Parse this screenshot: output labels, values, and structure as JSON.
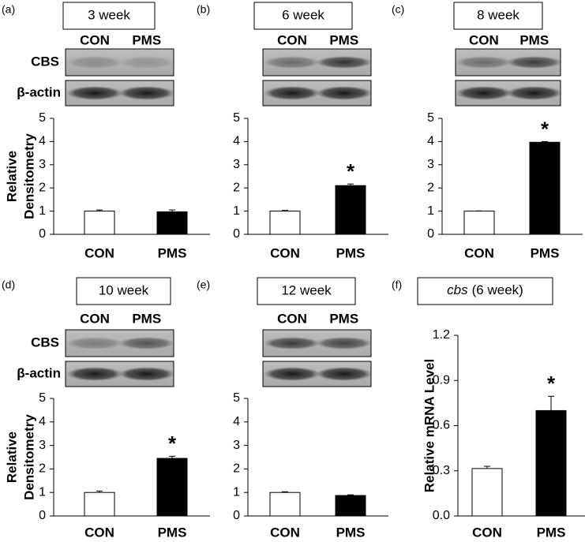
{
  "chart_data": [
    {
      "type": "bar",
      "panel": "(a)",
      "title": "3 week",
      "lane_labels": [
        "CON",
        "PMS"
      ],
      "blot_labels": [
        "CBS",
        "β-actin"
      ],
      "ylabel": [
        "Relative",
        "Densitometry"
      ],
      "categories": [
        "CON",
        "PMS"
      ],
      "values": [
        1.0,
        0.97
      ],
      "errors": [
        0.05,
        0.08
      ],
      "colors": [
        "#ffffff",
        "#000000"
      ],
      "value_annotations": [
        null,
        null
      ],
      "ylim": [
        0,
        5
      ],
      "yticks": [
        0,
        1,
        2,
        3,
        4,
        5
      ]
    },
    {
      "type": "bar",
      "panel": "(b)",
      "title": "6 week",
      "lane_labels": [
        "CON",
        "PMS"
      ],
      "categories": [
        "CON",
        "PMS"
      ],
      "values": [
        1.0,
        2.1
      ],
      "errors": [
        0.03,
        0.07
      ],
      "colors": [
        "#ffffff",
        "#000000"
      ],
      "value_annotations": [
        null,
        "*"
      ],
      "ylim": [
        0,
        5
      ],
      "yticks": [
        0,
        1,
        2,
        3,
        4,
        5
      ]
    },
    {
      "type": "bar",
      "panel": "(c)",
      "title": "8 week",
      "lane_labels": [
        "CON",
        "PMS"
      ],
      "categories": [
        "CON",
        "PMS"
      ],
      "values": [
        1.0,
        3.97
      ],
      "errors": [
        0.01,
        0.03
      ],
      "colors": [
        "#ffffff",
        "#000000"
      ],
      "value_annotations": [
        null,
        "*"
      ],
      "ylim": [
        0,
        5
      ],
      "yticks": [
        0,
        1,
        2,
        3,
        4,
        5
      ]
    },
    {
      "type": "bar",
      "panel": "(d)",
      "title": "10 week",
      "lane_labels": [
        "CON",
        "PMS"
      ],
      "blot_labels": [
        "CBS",
        "β-actin"
      ],
      "ylabel": [
        "Relative",
        "Densitometry"
      ],
      "categories": [
        "CON",
        "PMS"
      ],
      "values": [
        1.0,
        2.45
      ],
      "errors": [
        0.06,
        0.09
      ],
      "colors": [
        "#ffffff",
        "#000000"
      ],
      "value_annotations": [
        null,
        "*"
      ],
      "ylim": [
        0,
        5
      ],
      "yticks": [
        0,
        1,
        2,
        3,
        4,
        5
      ]
    },
    {
      "type": "bar",
      "panel": "(e)",
      "title": "12 week",
      "lane_labels": [
        "CON",
        "PMS"
      ],
      "categories": [
        "CON",
        "PMS"
      ],
      "values": [
        1.0,
        0.87
      ],
      "errors": [
        0.03,
        0.03
      ],
      "colors": [
        "#ffffff",
        "#000000"
      ],
      "value_annotations": [
        null,
        null
      ],
      "ylim": [
        0,
        5
      ],
      "yticks": [
        0,
        1,
        2,
        3,
        4,
        5
      ]
    },
    {
      "type": "bar",
      "panel": "(f)",
      "title_italic": "cbs",
      "title": "(6 week)",
      "ylabel": [
        "Relative mRNA Level"
      ],
      "categories": [
        "CON",
        "PMS"
      ],
      "values": [
        0.315,
        0.7
      ],
      "errors": [
        0.015,
        0.095
      ],
      "colors": [
        "#ffffff",
        "#000000"
      ],
      "value_annotations": [
        null,
        "*"
      ],
      "ylim": [
        0,
        1.2
      ],
      "yticks": [
        {
          "value": 0,
          "label": "0.0"
        },
        0.3,
        0.6,
        0.9,
        1.2
      ]
    }
  ]
}
